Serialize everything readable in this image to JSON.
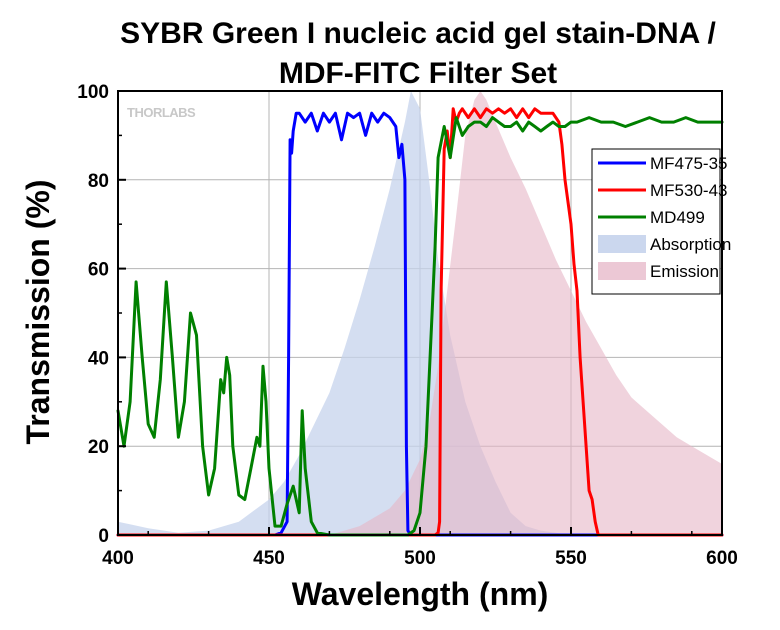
{
  "chart_data": {
    "type": "line",
    "title_line1": "SYBR Green I nucleic acid gel stain-DNA /",
    "title_line2": "MDF-FITC Filter Set",
    "xlabel": "Wavelength (nm)",
    "ylabel": "Transmission (%)",
    "xlim": [
      400,
      600
    ],
    "ylim": [
      0,
      100
    ],
    "xticks": [
      400,
      450,
      500,
      550,
      600
    ],
    "yticks": [
      0,
      20,
      40,
      60,
      80,
      100
    ],
    "grid": true,
    "legend_position": "top-right",
    "brand_logo": "THORLABS",
    "series": [
      {
        "name": "MF475-35",
        "kind": "line",
        "color": "#0000ff",
        "x": [
          400,
          452,
          454,
          456,
          456.5,
          457,
          457.5,
          458,
          459,
          460,
          462,
          464,
          466,
          468,
          470,
          472,
          474,
          476,
          478,
          480,
          482,
          484,
          486,
          488,
          490,
          492,
          493,
          494,
          495,
          495.5,
          496,
          497,
          500,
          600
        ],
        "y": [
          0,
          0,
          0.5,
          3,
          40,
          89,
          86,
          91,
          95,
          95,
          93,
          95,
          91,
          95,
          93,
          95,
          89,
          95,
          94,
          95,
          90,
          95,
          93,
          95,
          94,
          92,
          85,
          88,
          80,
          20,
          1,
          0,
          0,
          0
        ]
      },
      {
        "name": "MF530-43",
        "kind": "line",
        "color": "#ff0000",
        "x": [
          400,
          505,
          506,
          506.5,
          507,
          508,
          509,
          510,
          511,
          512,
          513,
          514,
          516,
          518,
          520,
          522,
          524,
          526,
          528,
          530,
          532,
          534,
          536,
          538,
          540,
          542,
          544,
          546,
          547,
          548,
          549,
          550,
          551,
          552,
          553,
          554,
          555,
          556,
          557,
          558,
          559,
          560,
          562,
          600
        ],
        "y": [
          0,
          0,
          0.5,
          3,
          55,
          87,
          91,
          85,
          96,
          93,
          95,
          96,
          94,
          96,
          94,
          96,
          95,
          96,
          95,
          96,
          94,
          96,
          94,
          96,
          95,
          95,
          95,
          93,
          88,
          80,
          75,
          70,
          61,
          55,
          40,
          30,
          20,
          10,
          8,
          3,
          0,
          0,
          0,
          0
        ]
      },
      {
        "name": "MD499",
        "kind": "line",
        "color": "#008000",
        "x": [
          400,
          402,
          404,
          406,
          408,
          410,
          412,
          414,
          416,
          418,
          420,
          422,
          424,
          426,
          428,
          430,
          432,
          434,
          435,
          436,
          437,
          438,
          440,
          442,
          444,
          446,
          447,
          448,
          449,
          450,
          452,
          454,
          456,
          458,
          459,
          460,
          461,
          462,
          464,
          466,
          470,
          480,
          490,
          496,
          498,
          500,
          502,
          504,
          505,
          506,
          508,
          510,
          512,
          514,
          516,
          518,
          520,
          522,
          524,
          526,
          528,
          530,
          532,
          534,
          536,
          538,
          540,
          542,
          544,
          546,
          548,
          550,
          552,
          556,
          560,
          564,
          568,
          572,
          576,
          580,
          584,
          588,
          592,
          596,
          600
        ],
        "y": [
          28,
          20,
          30,
          57,
          40,
          25,
          22,
          35,
          57,
          40,
          22,
          30,
          50,
          45,
          20,
          9,
          15,
          35,
          32,
          40,
          36,
          20,
          9,
          8,
          15,
          22,
          20,
          38,
          30,
          15,
          2,
          2,
          7,
          11,
          8,
          5,
          28,
          15,
          3,
          0.5,
          0,
          0,
          0,
          0,
          1,
          5,
          20,
          50,
          65,
          85,
          92,
          85,
          94,
          90,
          92,
          93,
          93,
          92,
          94,
          93,
          92,
          92,
          93,
          91,
          93,
          92,
          91,
          92,
          93,
          92,
          92,
          93,
          93,
          94,
          93,
          93,
          92,
          93,
          94,
          93,
          93,
          94,
          93,
          93,
          93
        ]
      },
      {
        "name": "Absorption",
        "kind": "area",
        "color": "#c5d3ec",
        "opacity": 0.75,
        "x": [
          400,
          410,
          420,
          430,
          440,
          450,
          455,
          460,
          465,
          470,
          475,
          480,
          485,
          490,
          495,
          497,
          500,
          503,
          506,
          510,
          515,
          520,
          525,
          530,
          535,
          540,
          545,
          550,
          600
        ],
        "y": [
          3,
          1.5,
          0.5,
          1,
          3,
          8,
          12,
          18,
          25,
          32,
          42,
          53,
          65,
          78,
          93,
          100,
          96,
          80,
          62,
          45,
          30,
          20,
          12,
          5,
          2,
          1,
          0.5,
          0,
          0
        ]
      },
      {
        "name": "Emission",
        "kind": "area",
        "color": "#e6b5c7",
        "opacity": 0.6,
        "x": [
          470,
          475,
          480,
          485,
          490,
          495,
          500,
          503,
          506,
          509,
          512,
          515,
          518,
          520,
          522,
          525,
          530,
          535,
          540,
          545,
          550,
          555,
          560,
          565,
          570,
          575,
          580,
          585,
          590,
          595,
          600
        ],
        "y": [
          0,
          1,
          2,
          4,
          6,
          10,
          17,
          25,
          38,
          55,
          72,
          90,
          98,
          100,
          98,
          93,
          85,
          78,
          70,
          62,
          55,
          48,
          42,
          36,
          31,
          28,
          25,
          22,
          20,
          18,
          16
        ]
      }
    ]
  }
}
